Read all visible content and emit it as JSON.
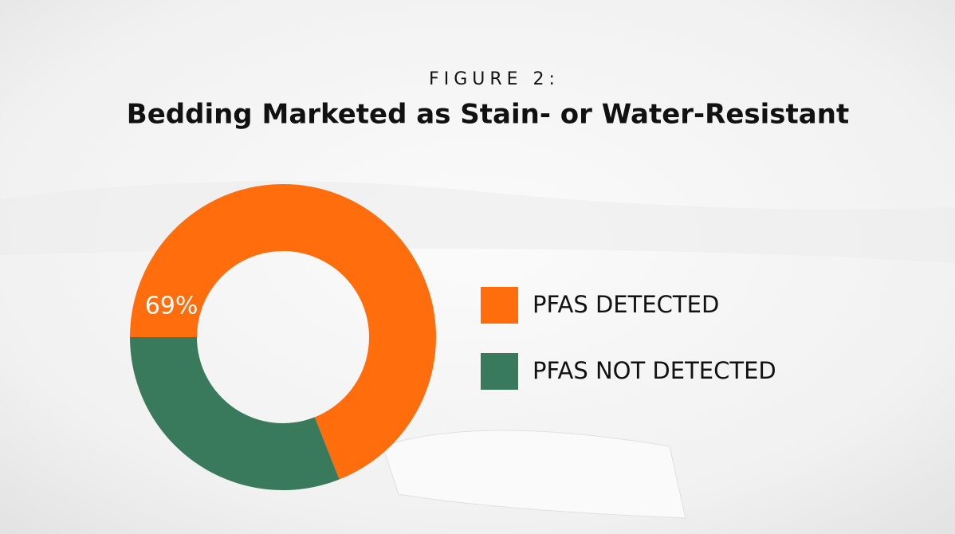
{
  "chart_data": {
    "type": "donut",
    "subtitle": "FIGURE 2:",
    "title": "Bedding Marketed as Stain- or Water-Resistant",
    "categories": [
      "PFAS DETECTED",
      "PFAS NOT DETECTED"
    ],
    "values": [
      69,
      31
    ],
    "value_labels": [
      "69%",
      null
    ],
    "colors": [
      "#ff6d0d",
      "#3a7a5c"
    ],
    "legend": "right"
  }
}
